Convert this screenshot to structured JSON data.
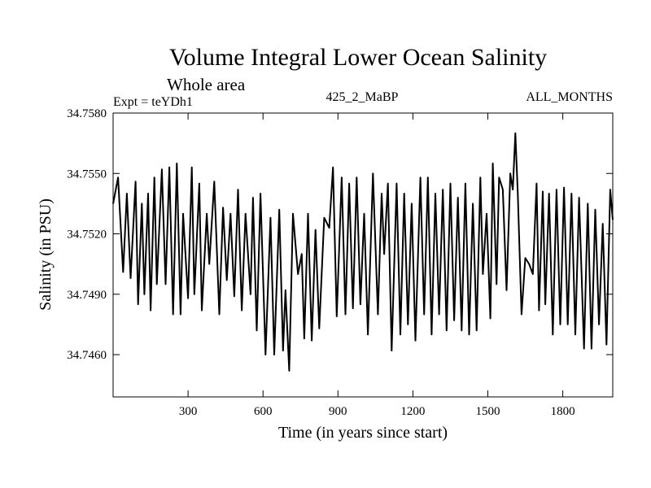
{
  "chart_data": {
    "type": "line",
    "title": "Volume Integral Lower Ocean Salinity",
    "subtitle": "Whole area",
    "experiment": "Expt = teYDh1",
    "run_label": "425_2_MaBP",
    "months_label": "ALL_MONTHS",
    "xlabel": "Time (in years since start)",
    "ylabel": "Salinity (in PSU)",
    "xlim": [
      0,
      2000
    ],
    "ylim": [
      34.7439,
      34.758
    ],
    "xticks": [
      300,
      600,
      900,
      1200,
      1500,
      1800
    ],
    "xtick_labels": [
      "300",
      "600",
      "900",
      "1200",
      "1500",
      "1800"
    ],
    "yticks": [
      34.746,
      34.749,
      34.752,
      34.755,
      34.758
    ],
    "ytick_labels": [
      "34.7460",
      "34.7490",
      "34.7520",
      "34.7550",
      "34.7580"
    ],
    "grid": false,
    "series": [
      {
        "name": "Salinity",
        "color": "#000000",
        "x": [
          0,
          20,
          40,
          55,
          70,
          90,
          100,
          115,
          125,
          140,
          150,
          165,
          175,
          195,
          210,
          225,
          240,
          255,
          270,
          280,
          300,
          315,
          325,
          345,
          355,
          375,
          385,
          405,
          425,
          440,
          455,
          470,
          485,
          500,
          515,
          530,
          550,
          560,
          575,
          590,
          600,
          610,
          630,
          645,
          665,
          680,
          690,
          705,
          720,
          740,
          755,
          765,
          780,
          795,
          810,
          825,
          845,
          865,
          880,
          895,
          915,
          930,
          945,
          960,
          975,
          990,
          1005,
          1020,
          1040,
          1060,
          1075,
          1085,
          1100,
          1115,
          1135,
          1150,
          1165,
          1180,
          1195,
          1210,
          1230,
          1245,
          1260,
          1275,
          1290,
          1305,
          1320,
          1335,
          1350,
          1365,
          1380,
          1395,
          1410,
          1425,
          1440,
          1455,
          1470,
          1480,
          1495,
          1510,
          1520,
          1535,
          1545,
          1560,
          1575,
          1590,
          1600,
          1610,
          1620,
          1635,
          1650,
          1665,
          1680,
          1695,
          1705,
          1720,
          1730,
          1745,
          1760,
          1775,
          1790,
          1805,
          1820,
          1835,
          1850,
          1865,
          1885,
          1900,
          1915,
          1930,
          1945,
          1960,
          1975,
          1990,
          2000
        ],
        "values": [
          34.7535,
          34.7548,
          34.7501,
          34.754,
          34.7498,
          34.7546,
          34.7485,
          34.7535,
          34.749,
          34.754,
          34.7482,
          34.7548,
          34.7495,
          34.7552,
          34.7495,
          34.7553,
          34.748,
          34.7555,
          34.748,
          34.753,
          34.7488,
          34.7553,
          34.749,
          34.7545,
          34.7482,
          34.753,
          34.7505,
          34.7546,
          34.748,
          34.7533,
          34.7497,
          34.753,
          34.7489,
          34.7542,
          34.7482,
          34.753,
          34.749,
          34.7538,
          34.7472,
          34.754,
          34.75,
          34.746,
          34.7528,
          34.746,
          34.7532,
          34.7462,
          34.7492,
          34.7452,
          34.753,
          34.75,
          34.751,
          34.7468,
          34.753,
          34.7467,
          34.7522,
          34.7473,
          34.7528,
          34.7523,
          34.7553,
          34.7479,
          34.7548,
          34.748,
          34.7545,
          34.7483,
          34.7548,
          34.7485,
          34.753,
          34.747,
          34.755,
          34.748,
          34.754,
          34.751,
          34.7545,
          34.7462,
          34.7545,
          34.747,
          34.754,
          34.7475,
          34.7535,
          34.7467,
          34.7548,
          34.748,
          34.7548,
          34.747,
          34.754,
          34.748,
          34.7542,
          34.7472,
          34.7545,
          34.7477,
          34.7538,
          34.7472,
          34.7545,
          34.747,
          34.7535,
          34.7472,
          34.7548,
          34.75,
          34.753,
          34.7478,
          34.7555,
          34.7495,
          34.7548,
          34.7542,
          34.7492,
          34.755,
          34.7542,
          34.757,
          34.754,
          34.748,
          34.7508,
          34.7505,
          34.75,
          34.7545,
          34.7482,
          34.7541,
          34.7485,
          34.754,
          34.747,
          34.7542,
          34.7475,
          34.7543,
          34.7475,
          34.754,
          34.747,
          34.7538,
          34.7463,
          34.7535,
          34.7463,
          34.7532,
          34.7475,
          34.7525,
          34.7465,
          34.7542,
          34.7527
        ]
      }
    ]
  }
}
